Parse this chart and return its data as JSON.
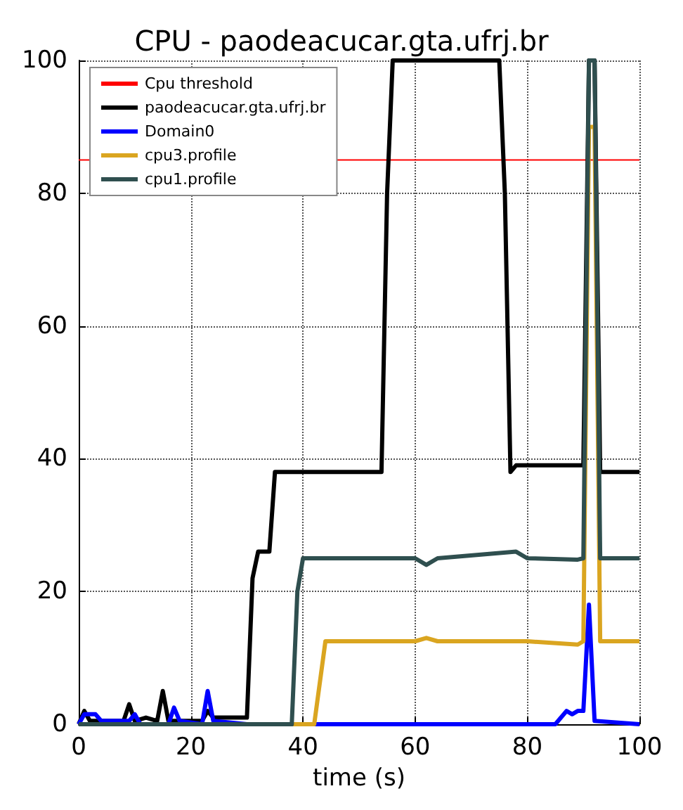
{
  "chart_data": {
    "type": "line",
    "title": "CPU - paodeacucar.gta.ufrj.br",
    "xlabel": "time (s)",
    "xlim": [
      0,
      100
    ],
    "xticks": [
      0,
      20,
      40,
      60,
      80,
      100
    ],
    "ylim": [
      0,
      100
    ],
    "yticks": [
      0,
      20,
      40,
      60,
      80,
      100
    ],
    "grid": true,
    "legend": "top left",
    "marker": "none",
    "line_style": "solid",
    "series": [
      {
        "name": "Cpu threshold",
        "color": "#ff0000",
        "x": [
          0,
          100
        ],
        "values": [
          85,
          85
        ]
      },
      {
        "name": "paodeacucar.gta.ufrj.br",
        "color": "#000000",
        "x": [
          0,
          1,
          2,
          4,
          8,
          9,
          10,
          12,
          14,
          15,
          16,
          20,
          22,
          23,
          24,
          30,
          31,
          32,
          34,
          35,
          38,
          50,
          54,
          55,
          56,
          75,
          76,
          77,
          78,
          80,
          88,
          90,
          91,
          92,
          93,
          100
        ],
        "values": [
          0,
          2,
          0.5,
          0.5,
          0.5,
          3,
          0.5,
          1,
          0.5,
          5,
          0.5,
          0.5,
          0.5,
          2,
          1,
          1,
          22,
          26,
          26,
          38,
          38,
          38,
          38,
          80,
          100,
          100,
          80,
          38,
          39,
          39,
          39,
          39,
          100,
          100,
          38,
          38
        ]
      },
      {
        "name": "Domain0",
        "color": "#0000ff",
        "x": [
          0,
          1,
          3,
          4,
          9,
          10,
          11,
          16,
          17,
          18,
          22,
          23,
          24,
          30,
          85,
          87,
          88,
          89,
          90,
          91,
          92,
          100
        ],
        "values": [
          0,
          1.5,
          1.5,
          0.5,
          0.5,
          1.5,
          0,
          0,
          2.5,
          0.5,
          0,
          5,
          0.5,
          0,
          0,
          2,
          1.5,
          2,
          2,
          18,
          0.5,
          0
        ]
      },
      {
        "name": "cpu3.profile",
        "color": "#daa520",
        "x": [
          0,
          42,
          44,
          60,
          62,
          64,
          80,
          89,
          90,
          91,
          92,
          93,
          100
        ],
        "values": [
          0,
          0,
          12.5,
          12.5,
          13,
          12.5,
          12.5,
          12,
          12.5,
          90,
          90,
          12.5,
          12.5
        ]
      },
      {
        "name": "cpu1.profile",
        "color": "#2f4f4f",
        "x": [
          0,
          38,
          39,
          40,
          60,
          62,
          64,
          78,
          80,
          89,
          90,
          91,
          92,
          93,
          100
        ],
        "values": [
          0,
          0,
          20,
          25,
          25,
          24,
          25,
          26,
          25,
          24.8,
          25,
          100,
          100,
          25,
          25
        ]
      }
    ]
  }
}
